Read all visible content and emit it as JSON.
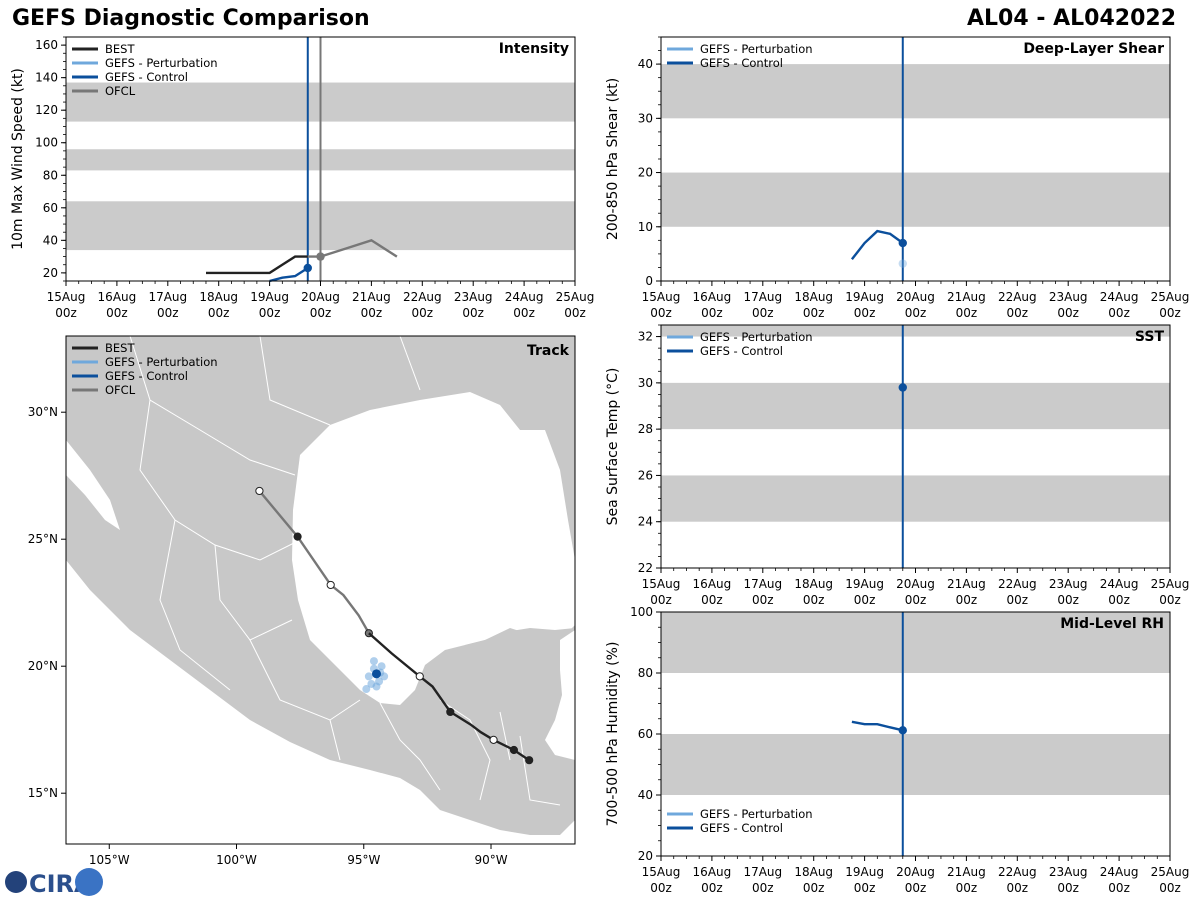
{
  "header": {
    "title": "GEFS Diagnostic Comparison",
    "storm_id": "AL04 - AL042022"
  },
  "logo": {
    "text": "CIRA"
  },
  "colors": {
    "best": "#222222",
    "perturbation": "#6fa8dc",
    "control": "#0b4f9c",
    "ofcl": "#777777",
    "band": "#cbcbcb",
    "land": "#c8c8c8",
    "ocean": "#ffffff"
  },
  "time_axis": {
    "ticks": [
      {
        "label": "15Aug",
        "sub": "00z"
      },
      {
        "label": "16Aug",
        "sub": "00z"
      },
      {
        "label": "17Aug",
        "sub": "00z"
      },
      {
        "label": "18Aug",
        "sub": "00z"
      },
      {
        "label": "19Aug",
        "sub": "00z"
      },
      {
        "label": "20Aug",
        "sub": "00z"
      },
      {
        "label": "21Aug",
        "sub": "00z"
      },
      {
        "label": "22Aug",
        "sub": "00z"
      },
      {
        "label": "23Aug",
        "sub": "00z"
      },
      {
        "label": "24Aug",
        "sub": "00z"
      },
      {
        "label": "25Aug",
        "sub": "00z"
      }
    ]
  },
  "chart_data": [
    {
      "id": "intensity",
      "type": "line",
      "title": "Intensity",
      "xlabel": "",
      "ylabel": "10m Max Wind Speed (kt)",
      "xlim": [
        0,
        10
      ],
      "ylim": [
        15,
        165
      ],
      "yticks": [
        20,
        40,
        60,
        80,
        100,
        120,
        140,
        160
      ],
      "bands": [
        [
          34,
          64
        ],
        [
          83,
          96
        ],
        [
          113,
          137
        ]
      ],
      "vlines": [
        {
          "x": 4.75,
          "series": "control"
        },
        {
          "x": 5.0,
          "series": "ofcl"
        }
      ],
      "legend": [
        "BEST",
        "GEFS - Perturbation",
        "GEFS - Control",
        "OFCL"
      ],
      "series": [
        {
          "name": "BEST",
          "key": "best",
          "x": [
            2.75,
            3.0,
            3.25,
            3.5,
            3.75,
            4.0,
            4.25,
            4.5,
            4.75
          ],
          "y": [
            20,
            20,
            20,
            20,
            20,
            20,
            25,
            30,
            30
          ]
        },
        {
          "name": "GEFS - Control",
          "key": "control",
          "x": [
            4.0,
            4.25,
            4.5,
            4.75
          ],
          "y": [
            15,
            17,
            18,
            23
          ]
        },
        {
          "name": "OFCL",
          "key": "ofcl",
          "x": [
            4.75,
            5.0,
            5.5,
            6.0,
            6.5
          ],
          "y": [
            30,
            30,
            35,
            40,
            30
          ]
        }
      ],
      "markers": [
        {
          "series": "control",
          "x": 4.75,
          "y": 23
        },
        {
          "series": "ofcl",
          "x": 5.0,
          "y": 30
        }
      ]
    },
    {
      "id": "shear",
      "type": "line",
      "title": "Deep-Layer Shear",
      "xlabel": "",
      "ylabel": "200-850 hPa Shear (kt)",
      "xlim": [
        0,
        10
      ],
      "ylim": [
        0,
        45
      ],
      "yticks": [
        0,
        10,
        20,
        30,
        40
      ],
      "bands": [
        [
          10,
          20
        ],
        [
          30,
          40
        ]
      ],
      "vlines": [
        {
          "x": 4.75,
          "series": "control"
        }
      ],
      "legend": [
        "GEFS - Perturbation",
        "GEFS - Control"
      ],
      "series": [
        {
          "name": "GEFS - Control",
          "key": "control",
          "x": [
            3.75,
            4.0,
            4.25,
            4.5,
            4.75
          ],
          "y": [
            4,
            7,
            9.2,
            8.7,
            7
          ]
        }
      ],
      "markers": [
        {
          "series": "control",
          "x": 4.75,
          "y": 7
        },
        {
          "series": "perturbation",
          "x": 4.75,
          "y": 3.2
        }
      ]
    },
    {
      "id": "sst",
      "type": "line",
      "title": "SST",
      "xlabel": "",
      "ylabel": "Sea Surface Temp (°C)",
      "xlim": [
        0,
        10
      ],
      "ylim": [
        22,
        32.5
      ],
      "yticks": [
        22,
        24,
        26,
        28,
        30,
        32
      ],
      "bands": [
        [
          24,
          26
        ],
        [
          28,
          30
        ],
        [
          32,
          34
        ]
      ],
      "vlines": [
        {
          "x": 4.75,
          "series": "control"
        }
      ],
      "legend": [
        "GEFS - Perturbation",
        "GEFS - Control"
      ],
      "series": [],
      "markers": [
        {
          "series": "control",
          "x": 4.75,
          "y": 29.8
        }
      ]
    },
    {
      "id": "rh",
      "type": "line",
      "title": "Mid-Level RH",
      "xlabel": "",
      "ylabel": "700-500 hPa Humidity (%)",
      "xlim": [
        0,
        10
      ],
      "ylim": [
        20,
        100
      ],
      "yticks": [
        20,
        40,
        60,
        80,
        100
      ],
      "bands": [
        [
          40,
          60
        ],
        [
          80,
          100
        ]
      ],
      "vlines": [
        {
          "x": 4.75,
          "series": "control"
        }
      ],
      "legend": [
        "GEFS - Perturbation",
        "GEFS - Control"
      ],
      "series": [
        {
          "name": "GEFS - Control",
          "key": "control",
          "x": [
            3.75,
            4.0,
            4.25,
            4.5,
            4.75
          ],
          "y": [
            64,
            63.2,
            63.2,
            62.2,
            61.2
          ]
        }
      ],
      "markers": [
        {
          "series": "control",
          "x": 4.75,
          "y": 61.2
        }
      ]
    },
    {
      "id": "track",
      "type": "scatter",
      "title": "Track",
      "xlabel": "",
      "ylabel": "",
      "xlim": [
        -106.7,
        -86.7
      ],
      "ylim": [
        13.0,
        33.0
      ],
      "xticks": [
        {
          "v": -105,
          "label": "105°W"
        },
        {
          "v": -100,
          "label": "100°W"
        },
        {
          "v": -95,
          "label": "95°W"
        },
        {
          "v": -90,
          "label": "90°W"
        }
      ],
      "yticks": [
        {
          "v": 15,
          "label": "15°N"
        },
        {
          "v": 20,
          "label": "20°N"
        },
        {
          "v": 25,
          "label": "25°N"
        },
        {
          "v": 30,
          "label": "30°N"
        }
      ],
      "legend": [
        "BEST",
        "GEFS - Perturbation",
        "GEFS - Control",
        "OFCL"
      ],
      "best": {
        "lon": [
          -88.5,
          -89.1,
          -89.9,
          -90.4,
          -90.8,
          -91.6,
          -92.3,
          -92.8,
          -93.9,
          -94.8
        ],
        "lat": [
          16.3,
          16.7,
          17.1,
          17.4,
          17.7,
          18.2,
          19.2,
          19.6,
          20.5,
          21.3
        ],
        "filled": [
          true,
          true,
          false,
          false,
          false,
          true,
          false,
          false,
          false,
          false
        ],
        "markers_at": [
          0,
          1,
          2,
          5,
          7
        ]
      },
      "ofcl": {
        "lon": [
          -94.8,
          -95.2,
          -95.8,
          -96.3,
          -97.6,
          -99.1
        ],
        "lat": [
          21.3,
          22.0,
          22.8,
          23.2,
          25.1,
          26.9
        ],
        "filled": [
          true,
          false,
          false,
          false,
          true,
          false
        ]
      },
      "control_point": {
        "lon": -94.5,
        "lat": 19.7
      },
      "perturbation_points": [
        {
          "lon": -94.6,
          "lat": 20.2
        },
        {
          "lon": -94.3,
          "lat": 20.0
        },
        {
          "lon": -94.8,
          "lat": 19.6
        },
        {
          "lon": -94.4,
          "lat": 19.4
        },
        {
          "lon": -94.7,
          "lat": 19.3
        },
        {
          "lon": -94.2,
          "lat": 19.6
        },
        {
          "lon": -94.9,
          "lat": 19.1
        },
        {
          "lon": -94.5,
          "lat": 19.2
        },
        {
          "lon": -94.6,
          "lat": 19.9
        },
        {
          "lon": -94.35,
          "lat": 19.75
        }
      ]
    }
  ]
}
